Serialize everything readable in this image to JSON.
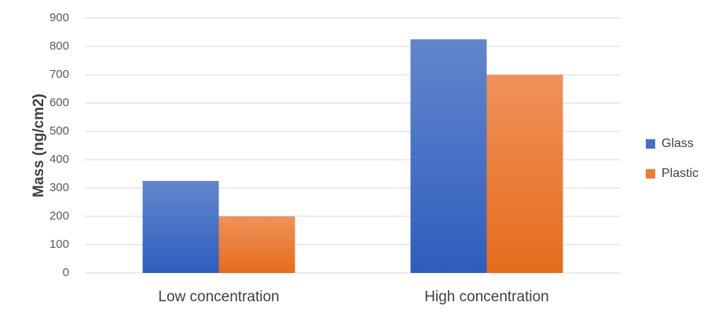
{
  "chart_data": {
    "type": "bar",
    "categories": [
      "Low concentration",
      "High concentration"
    ],
    "series": [
      {
        "name": "Glass",
        "values": [
          325,
          825
        ],
        "color": "#4472C4"
      },
      {
        "name": "Plastic",
        "values": [
          200,
          700
        ],
        "color": "#ED7D31"
      }
    ],
    "title": "",
    "xlabel": "",
    "ylabel": "Mass (ng/cm2)",
    "ylim": [
      0,
      900
    ],
    "yticks": [
      0,
      100,
      200,
      300,
      400,
      500,
      600,
      700,
      800,
      900
    ],
    "grid": true,
    "legend_position": "right"
  }
}
